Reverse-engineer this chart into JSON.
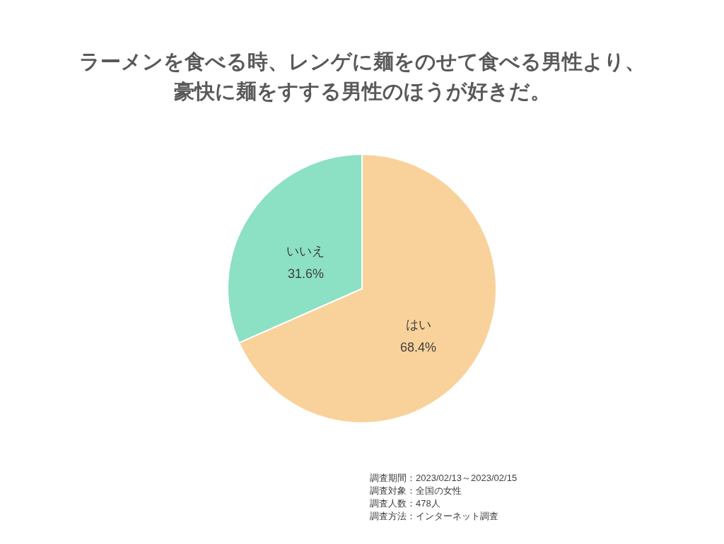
{
  "chart_data": {
    "type": "pie",
    "title": [
      "ラーメンを食べる時、レンゲに麺をのせて食べる男性より、",
      "豪快に麺をすする男性のほうが好きだ。"
    ],
    "categories": [
      "はい",
      "いいえ"
    ],
    "values": [
      68.4,
      31.6
    ],
    "colors": [
      "#f9d29b",
      "#8ce0c4"
    ],
    "value_labels": [
      "68.4%",
      "31.6%"
    ],
    "annotations": [
      "調査期間：2023/02/13～2023/02/15",
      "調査対象：全国の女性",
      "調査人数：478人",
      "調査方法：インターネット調査"
    ]
  }
}
